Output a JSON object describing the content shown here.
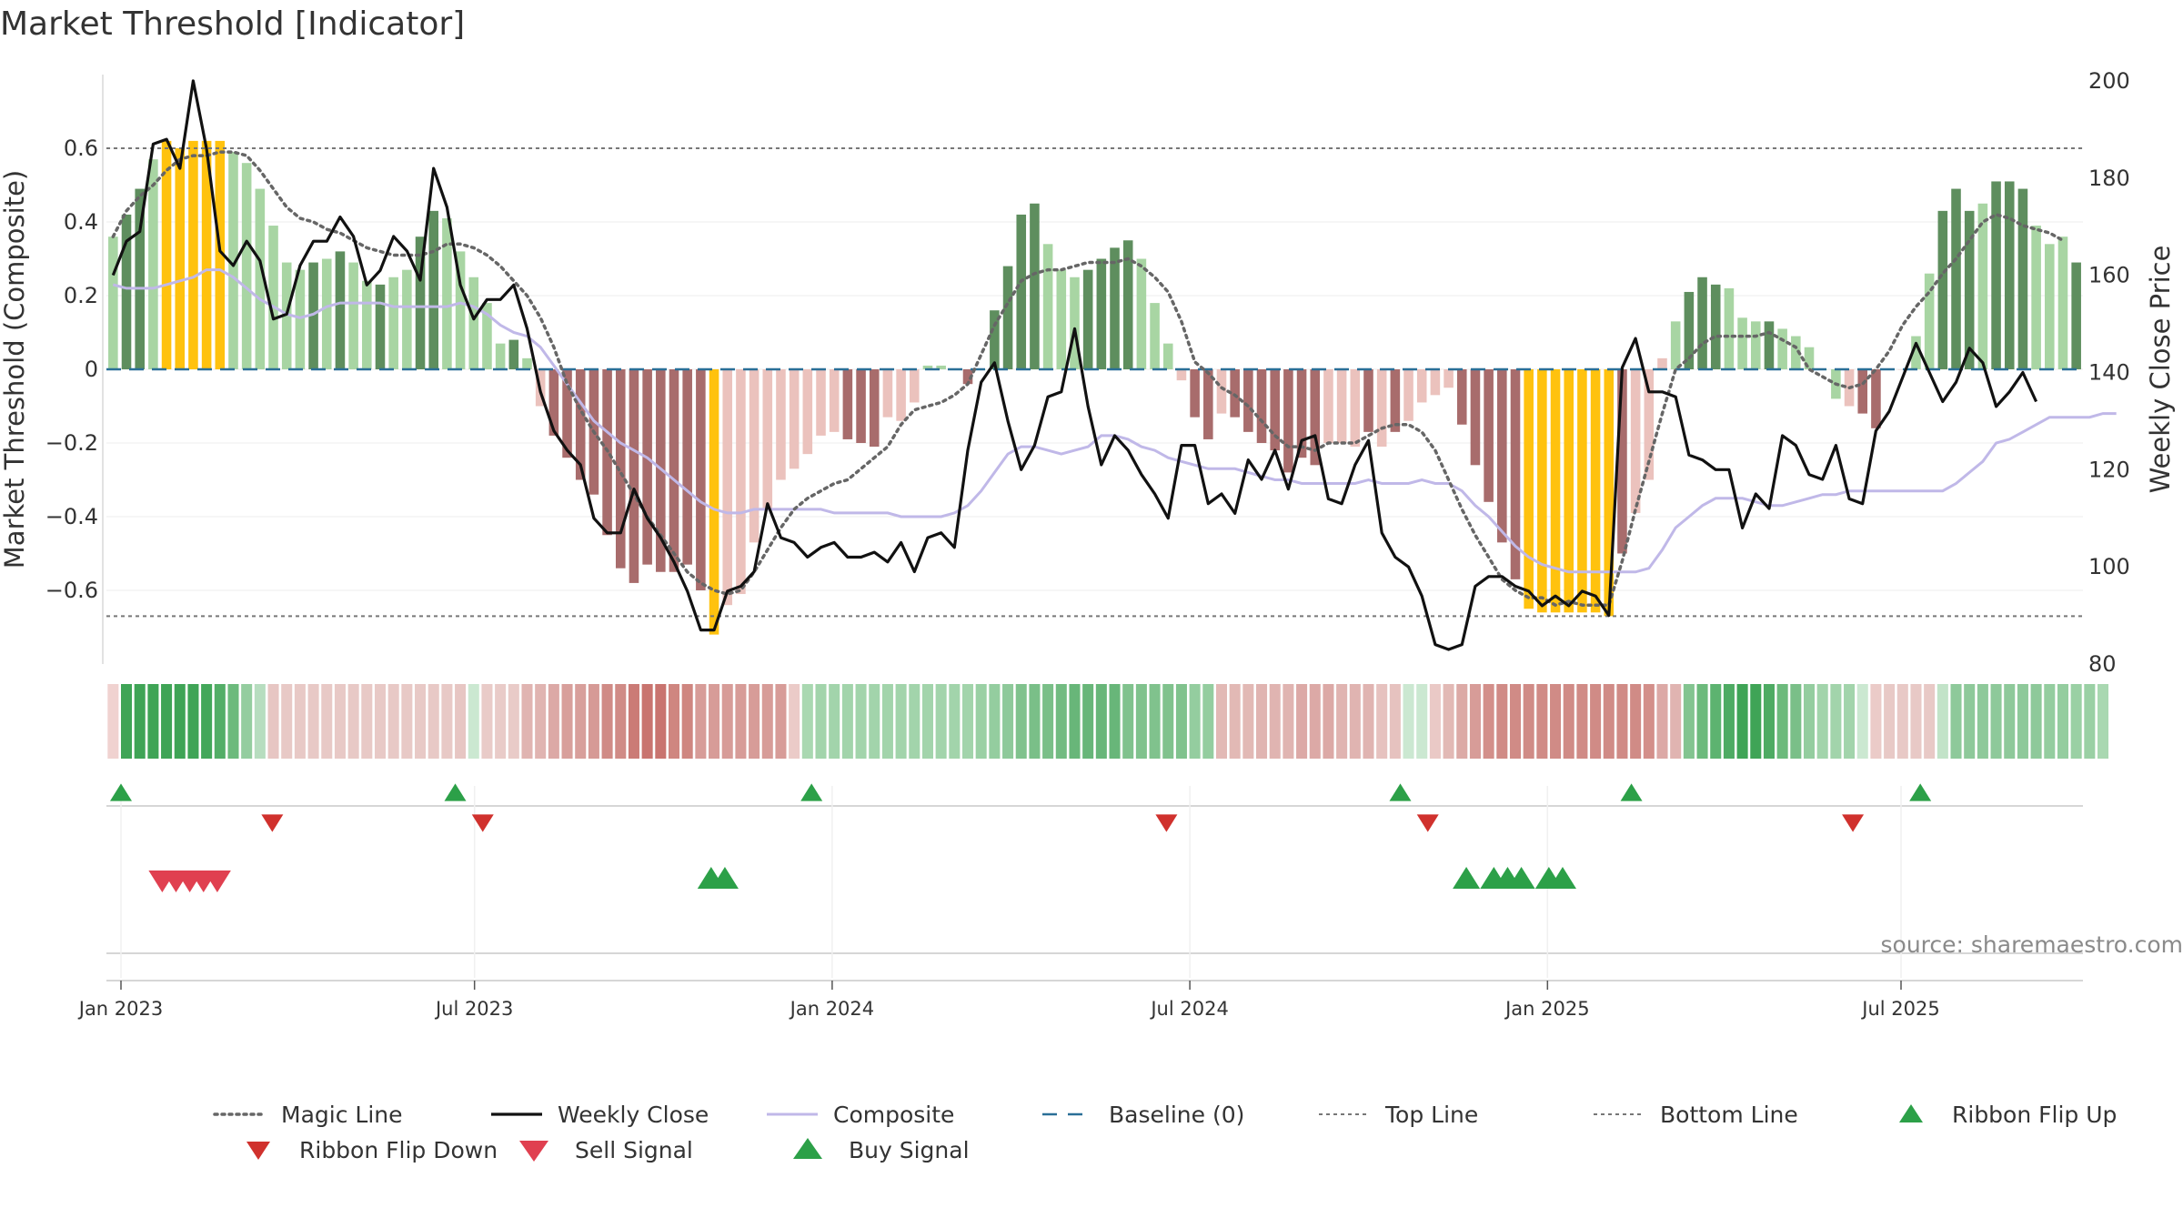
{
  "page": {
    "title": "Market Threshold [Indicator]",
    "source": "source: sharemaestro.com"
  },
  "colors": {
    "bar_strong_green": "#5e8e5e",
    "bar_light_green": "#a8d5a3",
    "bar_yellow": "#ffc20e",
    "bar_strong_red": "#a86c6c",
    "bar_light_red": "#ebc2bd",
    "close_line": "#111111",
    "composite_line": "#c0b8e8",
    "magic_line": "#666666",
    "baseline": "#2a6f97",
    "threshold_line": "#777777",
    "signal_green": "#2ca048",
    "ribbon_flip_down": "#d0312d",
    "sell_signal": "#e04050"
  },
  "chart_data": {
    "type": "bar",
    "title": "Market Threshold [Indicator]",
    "ylabel": "Market Threshold (Composite)",
    "y2label": "Weekly Close Price",
    "ylim": [
      -0.8,
      0.8
    ],
    "y2lim": [
      80,
      201.3
    ],
    "yticks": [
      0.6,
      0.4,
      0.2,
      0,
      -0.2,
      -0.4,
      -0.6
    ],
    "ytick_labels": [
      "0.6",
      "0.4",
      "0.2",
      "0",
      "−0.2",
      "−0.4",
      "−0.6"
    ],
    "y2ticks": [
      200,
      180,
      160,
      140,
      120,
      100,
      80
    ],
    "y2tick_labels": [
      "200",
      "180",
      "160",
      "140",
      "120",
      "100",
      "80"
    ],
    "x_dates": [
      "Jan 2023",
      "Jul 2023",
      "Jan 2024",
      "Jul 2024",
      "Jan 2025",
      "Jul 2025"
    ],
    "x_date_weeks": [
      0.3,
      26,
      52,
      78,
      104,
      129.7
    ],
    "top_line": 0.6,
    "bottom_line": -0.67,
    "composite": [
      0.36,
      0.42,
      0.49,
      0.57,
      0.62,
      0.6,
      0.62,
      0.62,
      0.62,
      0.59,
      0.56,
      0.49,
      0.39,
      0.29,
      0.27,
      0.29,
      0.3,
      0.32,
      0.29,
      0.24,
      0.23,
      0.25,
      0.27,
      0.36,
      0.43,
      0.41,
      0.32,
      0.25,
      0.18,
      0.07,
      0.08,
      0.03,
      -0.1,
      -0.18,
      -0.24,
      -0.3,
      -0.34,
      -0.45,
      -0.54,
      -0.58,
      -0.53,
      -0.55,
      -0.55,
      -0.53,
      -0.6,
      -0.72,
      -0.64,
      -0.61,
      -0.47,
      -0.38,
      -0.3,
      -0.27,
      -0.23,
      -0.18,
      -0.17,
      -0.19,
      -0.2,
      -0.21,
      -0.13,
      -0.14,
      -0.09,
      0.01,
      0.01,
      0.0,
      -0.04,
      0.0,
      0.16,
      0.28,
      0.42,
      0.45,
      0.34,
      0.27,
      0.25,
      0.27,
      0.3,
      0.33,
      0.35,
      0.3,
      0.18,
      0.07,
      -0.03,
      -0.13,
      -0.19,
      -0.12,
      -0.13,
      -0.17,
      -0.2,
      -0.22,
      -0.28,
      -0.24,
      -0.26,
      -0.2,
      -0.2,
      -0.21,
      -0.17,
      -0.21,
      -0.17,
      -0.14,
      -0.09,
      -0.07,
      -0.05,
      -0.15,
      -0.26,
      -0.36,
      -0.47,
      -0.57,
      -0.65,
      -0.66,
      -0.66,
      -0.66,
      -0.66,
      -0.66,
      -0.67,
      -0.5,
      -0.39,
      -0.3,
      0.03,
      0.13,
      0.21,
      0.25,
      0.23,
      0.22,
      0.14,
      0.13,
      0.13,
      0.11,
      0.09,
      0.06,
      0.0,
      -0.08,
      -0.1,
      -0.12,
      -0.16,
      0.0,
      0.0,
      0.09,
      0.26,
      0.43,
      0.49,
      0.43,
      0.45,
      0.51,
      0.51,
      0.49,
      0.39,
      0.34,
      0.36,
      0.29
    ],
    "bar_colors": [
      "lg",
      "sg",
      "sg",
      "lg",
      "y",
      "y",
      "y",
      "y",
      "y",
      "lg",
      "lg",
      "lg",
      "lg",
      "lg",
      "lg",
      "sg",
      "lg",
      "sg",
      "lg",
      "lg",
      "sg",
      "lg",
      "lg",
      "sg",
      "sg",
      "lg",
      "lg",
      "lg",
      "lg",
      "lg",
      "sg",
      "lg",
      "lr",
      "sr",
      "sr",
      "sr",
      "sr",
      "sr",
      "sr",
      "sr",
      "sr",
      "sr",
      "sr",
      "sr",
      "sr",
      "y",
      "lr",
      "lr",
      "lr",
      "lr",
      "lr",
      "lr",
      "lr",
      "lr",
      "lr",
      "sr",
      "sr",
      "sr",
      "lr",
      "lr",
      "lr",
      "lg",
      "lg",
      "lg",
      "sr",
      "lg",
      "sg",
      "sg",
      "sg",
      "sg",
      "lg",
      "lg",
      "lg",
      "sg",
      "sg",
      "sg",
      "sg",
      "lg",
      "lg",
      "lg",
      "lr",
      "sr",
      "sr",
      "lr",
      "sr",
      "sr",
      "sr",
      "sr",
      "sr",
      "sr",
      "sr",
      "lr",
      "lr",
      "lr",
      "sr",
      "lr",
      "sr",
      "lr",
      "lr",
      "lr",
      "lr",
      "sr",
      "sr",
      "sr",
      "sr",
      "sr",
      "y",
      "y",
      "y",
      "y",
      "y",
      "y",
      "y",
      "sr",
      "lr",
      "lr",
      "lr",
      "lg",
      "sg",
      "sg",
      "sg",
      "lg",
      "lg",
      "lg",
      "sg",
      "lg",
      "lg",
      "lg",
      "lg",
      "lg",
      "lr",
      "sr",
      "sr",
      "sr",
      "lr",
      "lg",
      "lg",
      "sg",
      "sg",
      "sg",
      "lg",
      "sg",
      "sg",
      "sg",
      "lg",
      "lg",
      "lg",
      "sg",
      "lg"
    ],
    "weekly_close": [
      160,
      167,
      169,
      187,
      188,
      182,
      200,
      186,
      165,
      162,
      167,
      163,
      151,
      152,
      162,
      167,
      167,
      172,
      168,
      158,
      161,
      168,
      165,
      159,
      182,
      174,
      158,
      151,
      155,
      155,
      158,
      149,
      136,
      128,
      124,
      121,
      110,
      107,
      107,
      116,
      110,
      106,
      101,
      95,
      87,
      87,
      95,
      96,
      99,
      113,
      106,
      105,
      102,
      104,
      105,
      102,
      102,
      103,
      101,
      105,
      99,
      106,
      107,
      104,
      124,
      138,
      142,
      130,
      120,
      125,
      135,
      136,
      149,
      133,
      121,
      127,
      124,
      119,
      115,
      110,
      125,
      125,
      113,
      115,
      111,
      122,
      118,
      124,
      116,
      126,
      127,
      114,
      113,
      121,
      126,
      107,
      102,
      100,
      94,
      84,
      83,
      84,
      96,
      98,
      98,
      96,
      95,
      92,
      94,
      92,
      95,
      94,
      90,
      141,
      147,
      136,
      136,
      135,
      123,
      122,
      120,
      120,
      108,
      115,
      112,
      127,
      125,
      119,
      118,
      125,
      114,
      113,
      128,
      132,
      139,
      146,
      140,
      134,
      138,
      145,
      142,
      133,
      136,
      140,
      134
    ],
    "composite_line": [
      0.23,
      0.22,
      0.22,
      0.22,
      0.23,
      0.24,
      0.25,
      0.27,
      0.27,
      0.25,
      0.22,
      0.19,
      0.17,
      0.15,
      0.14,
      0.15,
      0.17,
      0.18,
      0.18,
      0.18,
      0.18,
      0.17,
      0.17,
      0.17,
      0.17,
      0.17,
      0.18,
      0.17,
      0.15,
      0.12,
      0.1,
      0.09,
      0.06,
      0.01,
      -0.04,
      -0.09,
      -0.14,
      -0.17,
      -0.2,
      -0.22,
      -0.24,
      -0.27,
      -0.3,
      -0.33,
      -0.36,
      -0.38,
      -0.39,
      -0.39,
      -0.38,
      -0.38,
      -0.38,
      -0.38,
      -0.38,
      -0.38,
      -0.39,
      -0.39,
      -0.39,
      -0.39,
      -0.39,
      -0.4,
      -0.4,
      -0.4,
      -0.4,
      -0.39,
      -0.37,
      -0.33,
      -0.28,
      -0.23,
      -0.21,
      -0.21,
      -0.22,
      -0.23,
      -0.22,
      -0.21,
      -0.18,
      -0.18,
      -0.19,
      -0.21,
      -0.22,
      -0.24,
      -0.25,
      -0.26,
      -0.27,
      -0.27,
      -0.27,
      -0.28,
      -0.29,
      -0.3,
      -0.3,
      -0.31,
      -0.31,
      -0.31,
      -0.31,
      -0.31,
      -0.3,
      -0.31,
      -0.31,
      -0.31,
      -0.3,
      -0.31,
      -0.31,
      -0.33,
      -0.37,
      -0.4,
      -0.44,
      -0.48,
      -0.51,
      -0.53,
      -0.54,
      -0.55,
      -0.55,
      -0.55,
      -0.55,
      -0.55,
      -0.55,
      -0.54,
      -0.49,
      -0.43,
      -0.4,
      -0.37,
      -0.35,
      -0.35,
      -0.35,
      -0.36,
      -0.37,
      -0.37,
      -0.36,
      -0.35,
      -0.34,
      -0.34,
      -0.33,
      -0.33,
      -0.33,
      -0.33,
      -0.33,
      -0.33,
      -0.33,
      -0.33,
      -0.31,
      -0.28,
      -0.25,
      -0.2,
      -0.19,
      -0.17,
      -0.15,
      -0.13,
      -0.13,
      -0.13,
      -0.13,
      -0.12,
      -0.12
    ],
    "magic_line": [
      0.36,
      0.43,
      0.47,
      0.5,
      0.54,
      0.57,
      0.58,
      0.58,
      0.59,
      0.59,
      0.58,
      0.54,
      0.49,
      0.44,
      0.41,
      0.4,
      0.38,
      0.37,
      0.35,
      0.33,
      0.32,
      0.31,
      0.31,
      0.31,
      0.32,
      0.34,
      0.34,
      0.33,
      0.31,
      0.28,
      0.24,
      0.2,
      0.14,
      0.06,
      -0.04,
      -0.11,
      -0.17,
      -0.22,
      -0.28,
      -0.34,
      -0.4,
      -0.45,
      -0.5,
      -0.55,
      -0.58,
      -0.6,
      -0.61,
      -0.6,
      -0.55,
      -0.49,
      -0.43,
      -0.38,
      -0.35,
      -0.33,
      -0.31,
      -0.3,
      -0.27,
      -0.24,
      -0.21,
      -0.15,
      -0.11,
      -0.1,
      -0.09,
      -0.07,
      -0.04,
      0.04,
      0.12,
      0.18,
      0.24,
      0.26,
      0.27,
      0.27,
      0.28,
      0.29,
      0.29,
      0.29,
      0.3,
      0.28,
      0.25,
      0.21,
      0.13,
      0.02,
      -0.01,
      -0.05,
      -0.07,
      -0.1,
      -0.14,
      -0.18,
      -0.21,
      -0.21,
      -0.22,
      -0.2,
      -0.2,
      -0.2,
      -0.18,
      -0.16,
      -0.15,
      -0.15,
      -0.17,
      -0.22,
      -0.3,
      -0.38,
      -0.45,
      -0.51,
      -0.57,
      -0.6,
      -0.62,
      -0.62,
      -0.64,
      -0.63,
      -0.64,
      -0.64,
      -0.64,
      -0.52,
      -0.38,
      -0.25,
      -0.12,
      0.0,
      0.03,
      0.07,
      0.09,
      0.09,
      0.09,
      0.09,
      0.1,
      0.08,
      0.06,
      0.0,
      -0.02,
      -0.04,
      -0.05,
      -0.04,
      0.0,
      0.05,
      0.12,
      0.17,
      0.21,
      0.26,
      0.3,
      0.35,
      0.4,
      0.42,
      0.41,
      0.39,
      0.38,
      0.37,
      0.35
    ],
    "ribbon_colors": [
      "#f0d2d0",
      "#3fa456",
      "#3fa456",
      "#3fa456",
      "#3fa456",
      "#3fa456",
      "#3fa456",
      "#43a75a",
      "#53ae67",
      "#6cba7c",
      "#94cd9f",
      "#b7ddbf",
      "#e7c6c3",
      "#e8c9c6",
      "#e8c9c6",
      "#e8c9c6",
      "#e8c9c6",
      "#e8c9c6",
      "#e8c9c6",
      "#e8c9c6",
      "#e8c9c6",
      "#e8c9c6",
      "#e8c9c6",
      "#e8c9c6",
      "#e8c9c6",
      "#e8c9c6",
      "#e7c6c3",
      "#cbe8d1",
      "#e9cbc8",
      "#e9cbc8",
      "#e9cbc8",
      "#e0b4b1",
      "#e0b4b1",
      "#dca9a6",
      "#d89f9b",
      "#d89f9b",
      "#d69a96",
      "#d08b86",
      "#d08b86",
      "#cb7b76",
      "#c9746f",
      "#c9746f",
      "#cf8680",
      "#cf8680",
      "#d79c98",
      "#d79c98",
      "#d79c98",
      "#d79c98",
      "#d79c98",
      "#d79c98",
      "#d79c98",
      "#ebcbc8",
      "#a9d8b1",
      "#a2d4ab",
      "#a2d4ab",
      "#a2d4ab",
      "#a2d4ab",
      "#a2d4ab",
      "#a2d4ab",
      "#a2d4ab",
      "#a2d4ab",
      "#a2d4ab",
      "#a2d4ab",
      "#a2d4ab",
      "#a2d4ab",
      "#9ad0a4",
      "#94cd9f",
      "#8ec99a",
      "#80c28d",
      "#7abf88",
      "#7abf88",
      "#72bb81",
      "#68b679",
      "#68b679",
      "#68b679",
      "#68b679",
      "#80c28d",
      "#80c28d",
      "#80c28d",
      "#80c28d",
      "#80c28d",
      "#94cd9f",
      "#94cd9f",
      "#e2b9b5",
      "#e2b9b5",
      "#e2b9b5",
      "#e0b4b1",
      "#e0b4b1",
      "#e0b4b1",
      "#dca9a6",
      "#dca9a6",
      "#dca9a6",
      "#e0b4b1",
      "#e0b4b1",
      "#e0b4b1",
      "#e6c2bf",
      "#e6c2bf",
      "#cbe8d1",
      "#cbe8d1",
      "#eac9c6",
      "#e2b9b5",
      "#dcaaa6",
      "#d79c98",
      "#d38f8a",
      "#d08b86",
      "#d08b86",
      "#d08b86",
      "#d08b86",
      "#d08b86",
      "#d08b86",
      "#d08b86",
      "#d08b86",
      "#d08b86",
      "#d08b86",
      "#d08b86",
      "#d38f8a",
      "#dca9a6",
      "#e0b4b1",
      "#83c490",
      "#6cba7c",
      "#5db370",
      "#4eab63",
      "#3fa456",
      "#3fa456",
      "#4eab63",
      "#6cba7c",
      "#7abf88",
      "#94cd9f",
      "#a2d4ab",
      "#a2d4ab",
      "#a2d4ab",
      "#cbe8d1",
      "#ebcbc8",
      "#e8c9c6",
      "#e8c9c6",
      "#e8c9c6",
      "#e8c9c6",
      "#c2e3c8",
      "#8ec99a",
      "#8ec99a",
      "#8ec99a",
      "#8ec99a",
      "#8ec99a",
      "#8ec99a",
      "#8ec99a",
      "#94cd9f",
      "#94cd9f",
      "#9ad0a4",
      "#9ad0a4",
      "#a9d8b1"
    ],
    "ribbon_flip_up": [
      0.3,
      24.6,
      50.5,
      93.3,
      110.1,
      131.1
    ],
    "ribbon_flip_down": [
      11.3,
      26.6,
      76.3,
      95.3,
      126.2
    ],
    "sell_signal": [
      3.3,
      4.3,
      5.3,
      6.3,
      7.3
    ],
    "buy_signal": [
      43.2,
      44.2,
      98.1,
      100.1,
      101.1,
      102.1,
      104.1,
      105.1
    ],
    "legend": [
      {
        "label": "Magic Line",
        "kind": "dotted-line"
      },
      {
        "label": "Weekly Close",
        "kind": "line"
      },
      {
        "label": "Composite",
        "kind": "composite-line"
      },
      {
        "label": "Baseline (0)",
        "kind": "dashed-line"
      },
      {
        "label": "Top Line",
        "kind": "thin-dashed"
      },
      {
        "label": "Bottom Line",
        "kind": "thin-dashed"
      },
      {
        "label": "Ribbon Flip Up",
        "kind": "tri-up-green"
      },
      {
        "label": "Ribbon Flip Down",
        "kind": "tri-down-red"
      },
      {
        "label": "Sell Signal",
        "kind": "tri-down-sell"
      },
      {
        "label": "Buy Signal",
        "kind": "tri-up-buy"
      }
    ]
  }
}
